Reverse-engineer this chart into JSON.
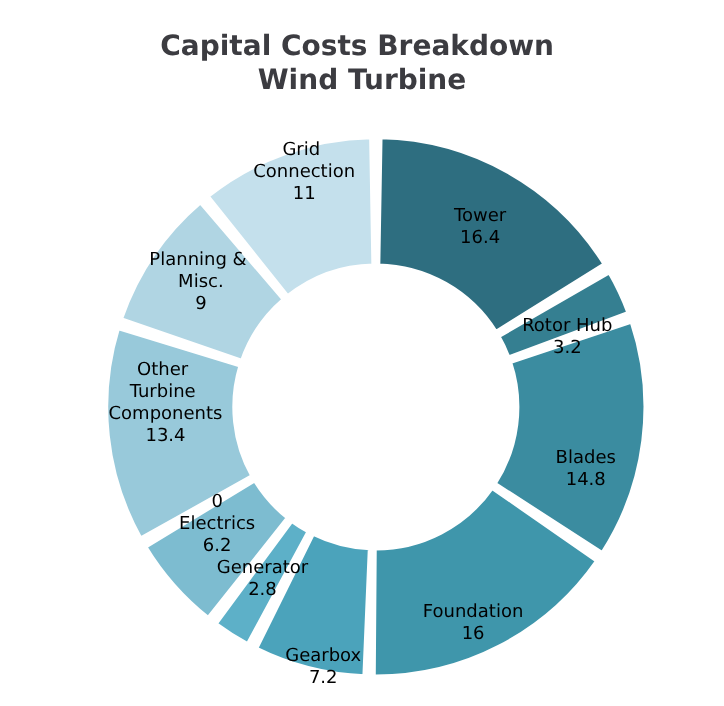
{
  "chart_data": {
    "type": "donut",
    "title": "Capital Costs Breakdown Wind Turbine",
    "categories": [
      "Tower",
      "Rotor Hub",
      "Blades",
      "Foundation",
      "Gearbox",
      "Generator",
      "0\nElectrics",
      "Other Turbine Components",
      "Planning & Misc.",
      "Grid Connection"
    ],
    "values": [
      16.4,
      3.2,
      14.8,
      16,
      7.2,
      2.8,
      6.2,
      13.4,
      9,
      11
    ],
    "colors": [
      "#2e6e80",
      "#357f91",
      "#3b8ca0",
      "#3f96ab",
      "#4ba3bb",
      "#5db0c8",
      "#7dbcd0",
      "#98c9da",
      "#b0d5e3",
      "#c4e0ec"
    ],
    "data_labels": true,
    "legend": false
  }
}
